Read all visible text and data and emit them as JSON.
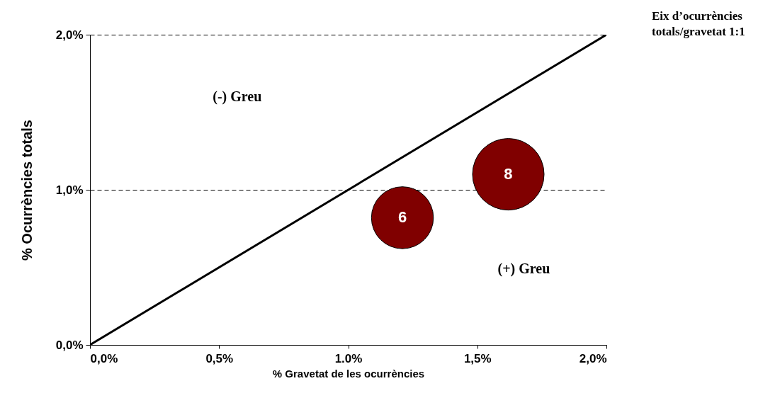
{
  "chart_data": {
    "type": "bubble",
    "xlabel": "% Gravetat de les ocurrències",
    "ylabel": "% Ocurrències totals",
    "x": [
      1.21,
      1.62
    ],
    "values": [
      0.82,
      1.1
    ],
    "sizes": [
      0.75,
      1
    ],
    "color": "#800000",
    "series": [
      {
        "name": "Eix d’ocurrències totals/gravetat 1:1",
        "type": "line",
        "color": "#000000",
        "x": [
          0,
          2
        ],
        "values": [
          0,
          2
        ]
      }
    ],
    "xlim": [
      0,
      2
    ],
    "xticks": [
      {
        "value": 0,
        "label": "0,0%"
      },
      {
        "value": 0.5,
        "label": "0,5%"
      },
      {
        "value": 1,
        "label": "1.0%"
      },
      {
        "value": 1.5,
        "label": "1,5%"
      },
      {
        "value": 2,
        "label": "2,0%"
      }
    ],
    "ylim": [
      0,
      2
    ],
    "yticks": [
      {
        "value": 0,
        "label": "0,0%"
      },
      {
        "value": 1,
        "label": "1,0%"
      },
      {
        "value": 2,
        "label": "2,0%"
      }
    ],
    "grid": "y",
    "annotations": [
      {
        "text": "6",
        "x": 1.21,
        "y": 0.82
      },
      {
        "text": "8",
        "x": 1.62,
        "y": 1.1
      },
      "(-) Greu",
      "(+) Greu"
    ]
  }
}
